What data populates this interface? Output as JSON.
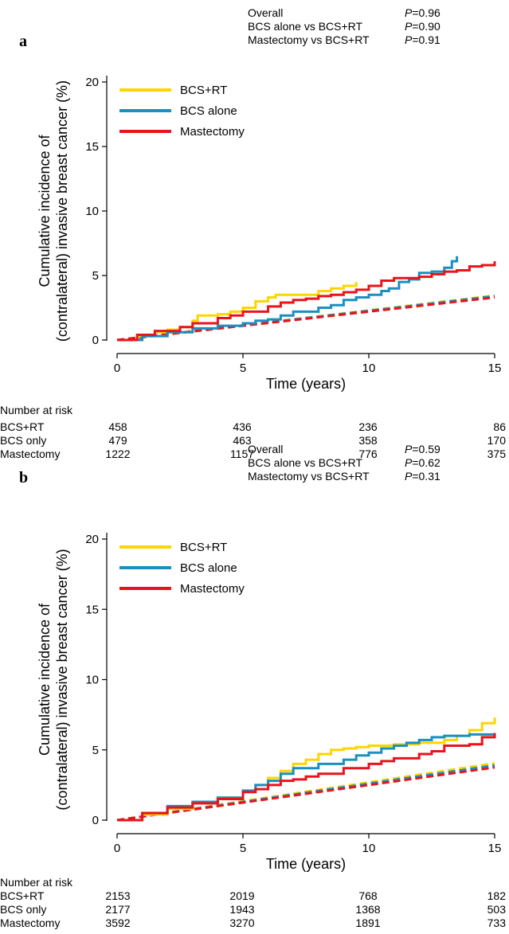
{
  "chart_data": [
    {
      "panel_label": "a",
      "type": "line",
      "xlabel": "Time (years)",
      "ylabel": [
        "Cumulative incidence of",
        "(contralateral) invasive breast cancer (%)"
      ],
      "xlim": [
        0,
        15
      ],
      "ylim": [
        0,
        20
      ],
      "xticks": [
        0,
        5,
        10,
        15
      ],
      "yticks": [
        0,
        5,
        10,
        15,
        20
      ],
      "grid": false,
      "legend_position": "top-left",
      "p_values": [
        {
          "label": "Overall",
          "p_prefix": "P",
          "p_value": "=0.96"
        },
        {
          "label": "BCS alone vs BCS+RT",
          "p_prefix": "P",
          "p_value": "=0.90"
        },
        {
          "label": "Mastectomy vs BCS+RT",
          "p_prefix": "P",
          "p_value": "=0.91"
        }
      ],
      "series": [
        {
          "name": "BCS+RT",
          "color": "#FFD500",
          "style": "step",
          "x": [
            0,
            0.8,
            1.5,
            2.0,
            2.5,
            3.0,
            3.2,
            4.0,
            4.5,
            5.0,
            5.5,
            6.0,
            6.3,
            7.0,
            7.5,
            8.0,
            8.5,
            9.0,
            9.5
          ],
          "y": [
            0,
            0.3,
            0.6,
            0.8,
            1.0,
            1.5,
            1.9,
            2.0,
            2.2,
            2.5,
            3.0,
            3.3,
            3.5,
            3.5,
            3.5,
            3.8,
            4.0,
            4.2,
            4.5
          ]
        },
        {
          "name": "BCS alone",
          "color": "#1A8FC0",
          "style": "step",
          "x": [
            0,
            1.0,
            2.0,
            3.0,
            4.0,
            5.0,
            5.5,
            6.0,
            6.5,
            7.0,
            8.0,
            8.5,
            9.0,
            9.5,
            10.0,
            10.5,
            10.8,
            11.2,
            11.6,
            12.0,
            12.5,
            13.0,
            13.3,
            13.5
          ],
          "y": [
            0,
            0.3,
            0.6,
            0.9,
            1.1,
            1.3,
            1.5,
            1.6,
            1.9,
            2.2,
            2.5,
            2.7,
            3.1,
            3.3,
            3.5,
            3.8,
            4.0,
            4.5,
            4.7,
            5.2,
            5.3,
            5.6,
            6.1,
            6.5
          ]
        },
        {
          "name": "Mastectomy",
          "color": "#E8141B",
          "style": "step",
          "x": [
            0,
            0.8,
            1.5,
            2.5,
            3.0,
            4.0,
            4.5,
            5.0,
            6.0,
            6.5,
            7.0,
            7.5,
            8.0,
            8.5,
            9.0,
            9.5,
            10.0,
            10.5,
            11.0,
            11.5,
            12.0,
            12.5,
            13.0,
            13.5,
            14.0,
            14.5,
            15.0
          ],
          "y": [
            0,
            0.4,
            0.7,
            1.0,
            1.3,
            1.7,
            1.9,
            2.2,
            2.6,
            2.9,
            3.1,
            3.2,
            3.4,
            3.5,
            3.7,
            3.9,
            4.2,
            4.6,
            4.8,
            4.8,
            4.9,
            5.1,
            5.3,
            5.4,
            5.7,
            5.8,
            6.1
          ]
        }
      ],
      "expected_lines": [
        {
          "color": "#FFD500",
          "x": [
            0,
            15
          ],
          "y": [
            0,
            3.45
          ]
        },
        {
          "color": "#1A8FC0",
          "x": [
            0,
            15
          ],
          "y": [
            0,
            3.4
          ]
        },
        {
          "color": "#E8141B",
          "x": [
            0,
            15
          ],
          "y": [
            0,
            3.3
          ]
        }
      ],
      "risk_table": {
        "title": "Number at risk",
        "times": [
          0,
          5,
          10,
          15
        ],
        "rows": [
          {
            "label": "BCS+RT",
            "values": [
              "458",
              "436",
              "236",
              "86"
            ]
          },
          {
            "label": "BCS only",
            "values": [
              "479",
              "463",
              "358",
              "170"
            ]
          },
          {
            "label": "Mastectomy",
            "values": [
              "1222",
              "1157",
              "776",
              "375"
            ]
          }
        ]
      }
    },
    {
      "panel_label": "b",
      "type": "line",
      "xlabel": "Time (years)",
      "ylabel": [
        "Cumulative incidence of",
        "(contralateral) invasive breast cancer (%)"
      ],
      "xlim": [
        0,
        15
      ],
      "ylim": [
        0,
        20
      ],
      "xticks": [
        0,
        5,
        10,
        15
      ],
      "yticks": [
        0,
        5,
        10,
        15,
        20
      ],
      "grid": false,
      "legend_position": "top-left",
      "p_values": [
        {
          "label": "Overall",
          "p_prefix": "P",
          "p_value": "=0.59"
        },
        {
          "label": "BCS alone vs BCS+RT",
          "p_prefix": "P",
          "p_value": "=0.62"
        },
        {
          "label": "Mastectomy vs BCS+RT",
          "p_prefix": "P",
          "p_value": "=0.31"
        }
      ],
      "series": [
        {
          "name": "BCS+RT",
          "color": "#FFD500",
          "style": "step",
          "x": [
            0,
            1.0,
            2.0,
            3.0,
            4.0,
            5.0,
            5.5,
            6.0,
            6.5,
            7.0,
            7.5,
            8.0,
            8.5,
            9.0,
            9.5,
            10.0,
            11.0,
            12.0,
            13.0,
            13.5,
            14.0,
            14.5,
            15.0
          ],
          "y": [
            0,
            0.4,
            0.8,
            1.2,
            1.6,
            2.0,
            2.5,
            3.0,
            3.5,
            4.0,
            4.3,
            4.7,
            5.0,
            5.1,
            5.2,
            5.3,
            5.4,
            5.5,
            5.7,
            6.0,
            6.4,
            6.9,
            7.3
          ]
        },
        {
          "name": "BCS alone",
          "color": "#1A8FC0",
          "style": "step",
          "x": [
            0,
            1.0,
            2.0,
            3.0,
            4.0,
            5.0,
            5.5,
            6.0,
            6.5,
            7.0,
            8.0,
            9.0,
            9.5,
            10.0,
            10.5,
            11.0,
            11.5,
            12.0,
            12.5,
            13.0,
            14.0,
            15.0
          ],
          "y": [
            0,
            0.5,
            1.0,
            1.3,
            1.6,
            2.1,
            2.5,
            2.8,
            3.3,
            3.7,
            4.0,
            4.3,
            4.6,
            4.8,
            5.1,
            5.3,
            5.5,
            5.7,
            5.9,
            6.0,
            6.1,
            6.2
          ]
        },
        {
          "name": "Mastectomy",
          "color": "#E8141B",
          "style": "step",
          "x": [
            0,
            1.0,
            2.0,
            3.0,
            4.0,
            5.0,
            5.5,
            6.0,
            6.5,
            7.0,
            7.5,
            8.0,
            9.0,
            10.0,
            10.5,
            11.0,
            12.0,
            12.5,
            13.0,
            14.0,
            14.5,
            15.0
          ],
          "y": [
            0,
            0.5,
            0.9,
            1.2,
            1.5,
            2.0,
            2.2,
            2.5,
            2.8,
            2.9,
            3.1,
            3.3,
            3.7,
            4.0,
            4.2,
            4.4,
            4.7,
            4.9,
            5.3,
            5.4,
            5.9,
            6.2
          ]
        }
      ],
      "expected_lines": [
        {
          "color": "#FFD500",
          "x": [
            0,
            15
          ],
          "y": [
            0,
            4.05
          ]
        },
        {
          "color": "#1A8FC0",
          "x": [
            0,
            15
          ],
          "y": [
            0,
            3.9
          ]
        },
        {
          "color": "#E8141B",
          "x": [
            0,
            15
          ],
          "y": [
            0,
            3.75
          ]
        }
      ],
      "risk_table": {
        "title": "Number at risk",
        "times": [
          0,
          5,
          10,
          15
        ],
        "rows": [
          {
            "label": "BCS+RT",
            "values": [
              "2153",
              "2019",
              "768",
              "182"
            ]
          },
          {
            "label": "BCS only",
            "values": [
              "2177",
              "1943",
              "1368",
              "503"
            ]
          },
          {
            "label": "Mastectomy",
            "values": [
              "3592",
              "3270",
              "1891",
              "733"
            ]
          }
        ]
      }
    }
  ]
}
